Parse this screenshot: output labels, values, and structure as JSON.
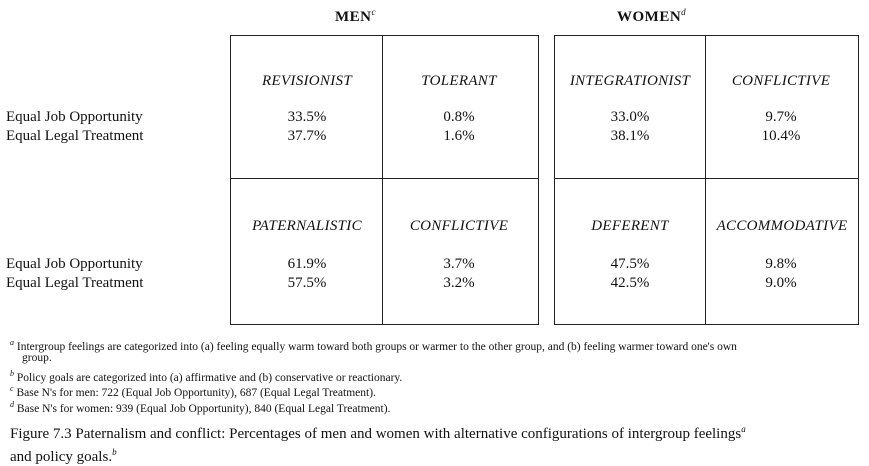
{
  "headers": {
    "men": "MEN",
    "men_sup": "c",
    "women": "WOMEN",
    "women_sup": "d"
  },
  "row_labels": {
    "job": "Equal Job Opportunity",
    "legal": "Equal Legal Treatment"
  },
  "cells": {
    "men_top_left": {
      "category": "REVISIONIST",
      "job": "33.5%",
      "legal": "37.7%"
    },
    "men_top_right": {
      "category": "TOLERANT",
      "job": "0.8%",
      "legal": "1.6%"
    },
    "men_bottom_left": {
      "category": "PATERNALISTIC",
      "job": "61.9%",
      "legal": "57.5%"
    },
    "men_bottom_right": {
      "category": "CONFLICTIVE",
      "job": "3.7%",
      "legal": "3.2%"
    },
    "women_top_left": {
      "category": "INTEGRATIONIST",
      "job": "33.0%",
      "legal": "38.1%"
    },
    "women_top_right": {
      "category": "CONFLICTIVE",
      "job": "9.7%",
      "legal": "10.4%"
    },
    "women_bottom_left": {
      "category": "DEFERENT",
      "job": "47.5%",
      "legal": "42.5%"
    },
    "women_bottom_right": {
      "category": "ACCOMMODATIVE",
      "job": "9.8%",
      "legal": "9.0%"
    }
  },
  "footnotes": {
    "a_mark": "a",
    "a_line1": "Intergroup feelings are categorized into (a) feeling equally warm toward both groups or warmer to the other group, and (b) feeling warmer toward one's own",
    "a_line2": "group.",
    "b_mark": "b",
    "b_text": "Policy goals are categorized into (a) affirmative and (b) conservative or reactionary.",
    "c_mark": "c",
    "c_text": "Base N's for men: 722 (Equal Job Opportunity), 687 (Equal Legal Treatment).",
    "d_mark": "d",
    "d_text": "Base N's for women: 939 (Equal Job Opportunity), 840 (Equal Legal Treatment)."
  },
  "caption": {
    "line1": "Figure 7.3  Paternalism and conflict: Percentages of men and women with alternative configurations of intergroup feelings",
    "line1_sup": "a",
    "line2": "and policy goals.",
    "line2_sup": "b"
  }
}
